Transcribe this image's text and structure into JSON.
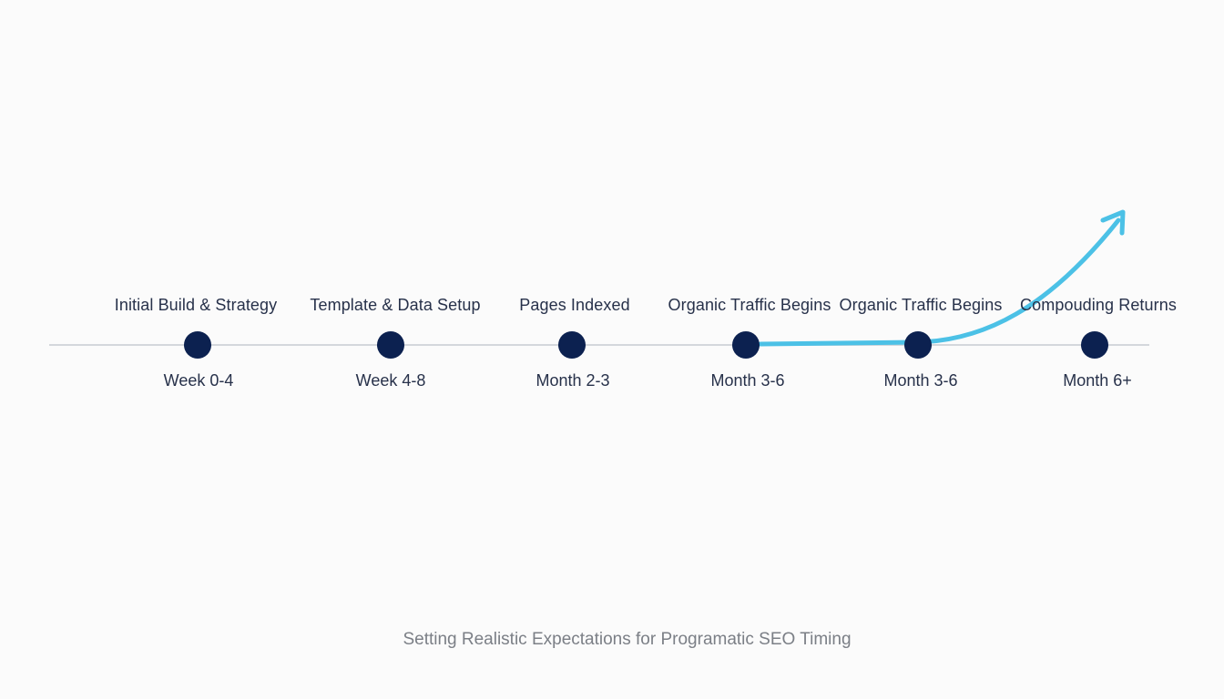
{
  "caption": "Setting Realistic Expectations for Programatic SEO Timing",
  "colors": {
    "track": "#d4d7dc",
    "node": "#0c2150",
    "growth_arrow": "#4cc1e6",
    "text": "#27314a",
    "caption": "#7b7f86"
  },
  "milestones": [
    {
      "label": "Initial Build & Strategy",
      "time": "Week 0-4"
    },
    {
      "label": "Template & Data Setup",
      "time": "Week 4-8"
    },
    {
      "label": "Pages Indexed",
      "time": "Month 2-3"
    },
    {
      "label": "Organic Traffic Begins",
      "time": "Month 3-6"
    },
    {
      "label": "Organic Traffic Begins",
      "time": "Month 3-6"
    },
    {
      "label": "Compouding Returns",
      "time": "Month 6+"
    }
  ],
  "icons": {
    "node": "filled-circle",
    "growth": "curved-up-arrow"
  }
}
